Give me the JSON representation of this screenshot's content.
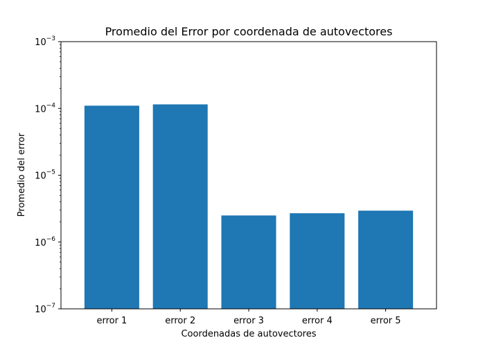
{
  "chart_data": {
    "type": "bar",
    "title": "Promedio del Error por coordenada de autovectores",
    "xlabel": "Coordenadas de autovectores",
    "ylabel": "Promedio del error",
    "categories": [
      "error 1",
      "error 2",
      "error 3",
      "error 4",
      "error 5"
    ],
    "values": [
      0.00011,
      0.000115,
      2.5e-06,
      2.7e-06,
      2.95e-06
    ],
    "yscale": "log",
    "ylim": [
      1e-07,
      0.001
    ],
    "yticks": [
      {
        "value": 1e-07,
        "base": "10",
        "exp": "−7"
      },
      {
        "value": 1e-06,
        "base": "10",
        "exp": "−6"
      },
      {
        "value": 1e-05,
        "base": "10",
        "exp": "−5"
      },
      {
        "value": 0.0001,
        "base": "10",
        "exp": "−4"
      },
      {
        "value": 0.001,
        "base": "10",
        "exp": "−3"
      }
    ],
    "grid": false,
    "bar_color": "#1f77b4"
  }
}
